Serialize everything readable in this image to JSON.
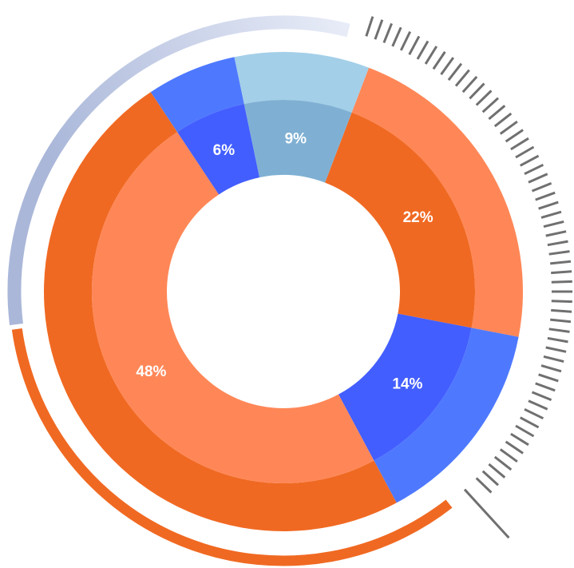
{
  "chart_data": {
    "type": "pie",
    "title": "",
    "legend": "none",
    "values": [
      22,
      14,
      48,
      6,
      9
    ],
    "labels": [
      "22%",
      "14%",
      "48%",
      "6%",
      "9%"
    ],
    "outer_colors": [
      "#FF8757",
      "#4E79FF",
      "#F06922",
      "#4E79FF",
      "#A3CFE8"
    ],
    "inner_colors": [
      "#F06922",
      "#435EFF",
      "#FF8757",
      "#435EFF",
      "#7FB0D3"
    ],
    "decor_arc_colors": {
      "orange": "#F06922",
      "light_blue_start": "#AAB7D9",
      "light_blue_end": "#E9EDF8"
    },
    "tick_color": "#707070"
  }
}
